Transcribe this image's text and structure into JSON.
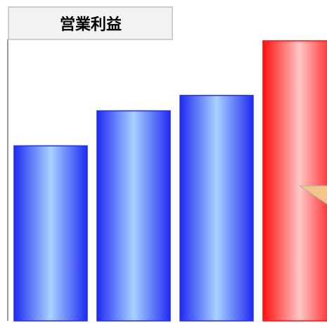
{
  "chart_data": {
    "type": "bar",
    "title": "営業利益",
    "categories": [
      "",
      "",
      "",
      ""
    ],
    "values": [
      250,
      300,
      322,
      400
    ],
    "ylim": [
      0,
      400
    ],
    "xlabel": "",
    "ylabel": "",
    "grid": false,
    "legend": "none",
    "colors": {
      "regular": "#1f2bf2",
      "regular_highlight": "#a9d2ff",
      "highlighted": "#ff1010",
      "highlighted_highlight": "#ffc6c6",
      "title_background": "#f2f2f2",
      "title_border": "#c0c0c0"
    },
    "highlight_index": 3,
    "annotation_marker_color": "#f4c48a"
  }
}
